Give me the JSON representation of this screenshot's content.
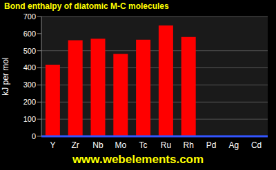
{
  "chart_data": {
    "type": "bar",
    "title": "Bond enthalpy of diatomic M-C molecules",
    "y_label": "kJ per mol",
    "annotations": [
      "www.webelements.com"
    ],
    "categories": [
      "Y",
      "Zr",
      "Nb",
      "Mo",
      "Tc",
      "Ru",
      "Rh",
      "Pd",
      "Ag",
      "Cd"
    ],
    "values": [
      418,
      561,
      570,
      482,
      564,
      648,
      580,
      null,
      null,
      null
    ],
    "color": "#ff0000",
    "ylim": [
      0,
      700
    ],
    "yticks": [
      0,
      100,
      200,
      300,
      400,
      500,
      600,
      700
    ],
    "grid": true
  }
}
